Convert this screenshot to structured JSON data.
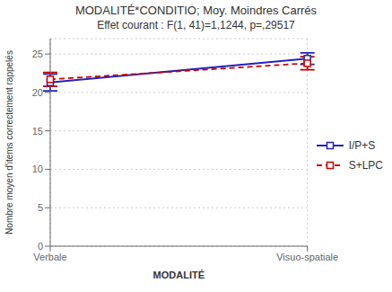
{
  "chart_data": {
    "type": "line",
    "title": "MODALITÉ*CONDITIO; Moy. Moindres Carrés",
    "subtitle": "Effet courant : F(1, 41)=1,1244, p=,29517",
    "xlabel": "MODALITÉ",
    "ylabel": "Nombre moyen d'items correctement rappelés",
    "categories": [
      "Verbale",
      "Visuo-spatiale"
    ],
    "series": [
      {
        "name": "I/P+S",
        "color": "#2222bb",
        "line_style": "solid",
        "marker": "square",
        "values": [
          21.3,
          24.4
        ],
        "yerr": [
          1.1,
          0.75
        ]
      },
      {
        "name": "S+LPC",
        "color": "#cc0000",
        "line_style": "dashed",
        "marker": "square",
        "values": [
          21.7,
          23.8
        ],
        "yerr": [
          0.9,
          0.85
        ]
      }
    ],
    "ylim": [
      0,
      27
    ],
    "yticks": [
      0,
      5,
      10,
      15,
      20,
      25
    ],
    "grid": true,
    "legend": "right"
  }
}
